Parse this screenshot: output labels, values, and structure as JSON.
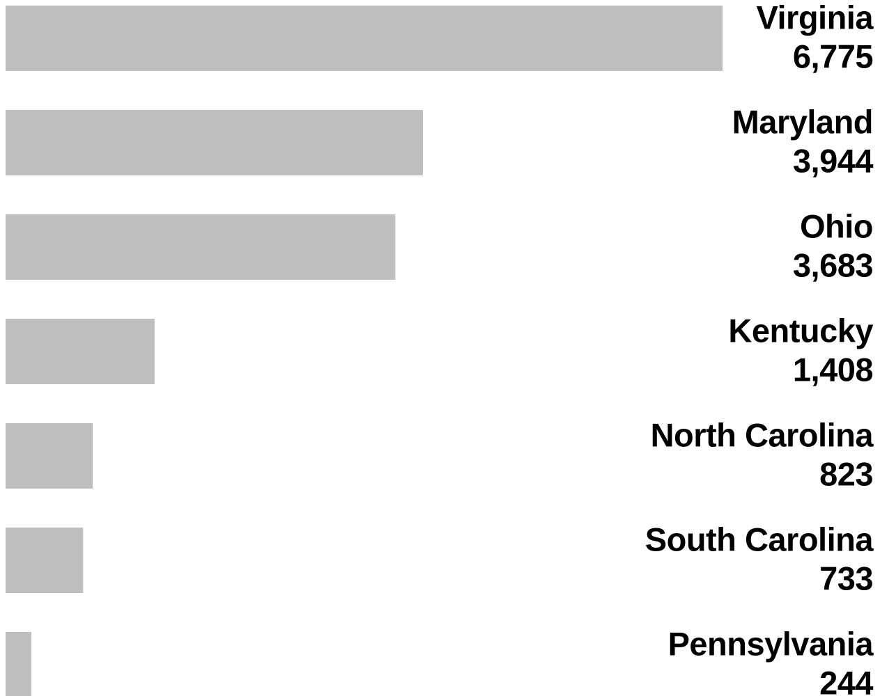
{
  "chart_data": {
    "type": "bar",
    "orientation": "horizontal",
    "categories": [
      "Virginia",
      "Maryland",
      "Ohio",
      "Kentucky",
      "North Carolina",
      "South Carolina",
      "Pennsylvania"
    ],
    "values": [
      6775,
      3944,
      3683,
      1408,
      823,
      733,
      244
    ],
    "value_labels": [
      "6,775",
      "3,944",
      "3,683",
      "1,408",
      "823",
      "733",
      "244"
    ],
    "color": "#bfbfbf"
  }
}
